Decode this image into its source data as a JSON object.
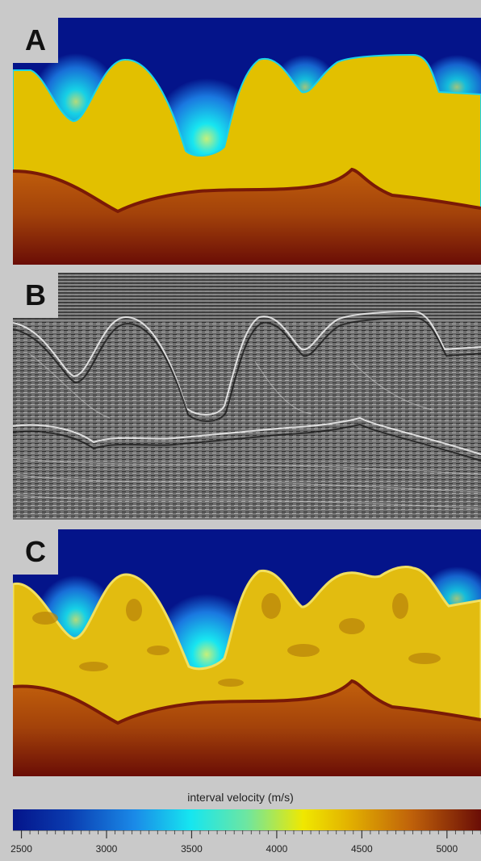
{
  "panels": [
    {
      "label": "A"
    },
    {
      "label": "B"
    },
    {
      "label": "C"
    }
  ],
  "colorbar": {
    "title": "interval velocity (m/s)",
    "min": 2450,
    "max": 5200,
    "tick_labels": [
      "2500",
      "3000",
      "3500",
      "4000",
      "4500",
      "5000"
    ],
    "tick_values": [
      2500,
      3000,
      3500,
      4000,
      4500,
      5000
    ],
    "colors": {
      "deep_blue": "#04148a",
      "cyan": "#16e6f0",
      "salt_yellow": "#e2c000",
      "orange": "#c0620a",
      "dark_red": "#6a0d06"
    }
  }
}
